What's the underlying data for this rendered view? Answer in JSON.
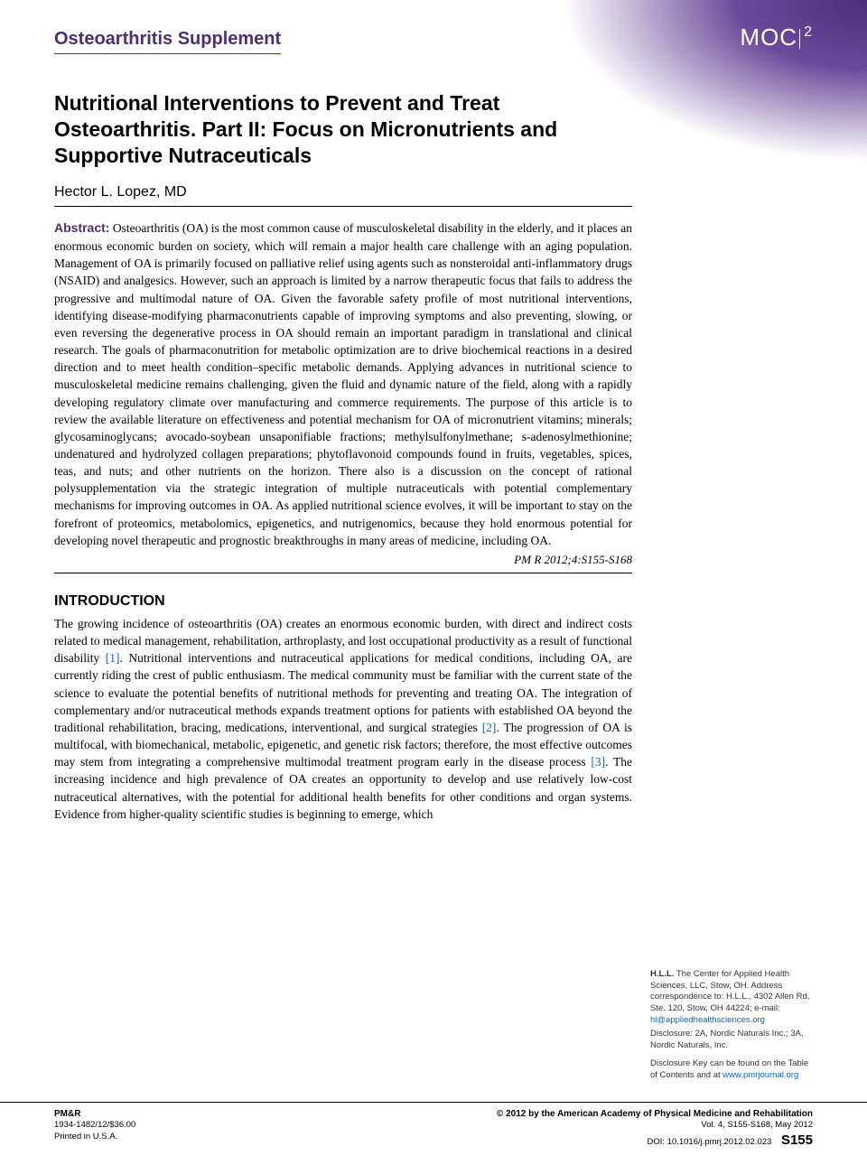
{
  "header": {
    "supplement_label": "Osteoarthritis Supplement",
    "badge_text": "MOC",
    "badge_exp": "2"
  },
  "article": {
    "title": "Nutritional Interventions to Prevent and Treat Osteoarthritis. Part II: Focus on Micronutrients and Supportive Nutraceuticals",
    "author": "Hector L. Lopez, MD"
  },
  "abstract": {
    "label": "Abstract:",
    "text": "Osteoarthritis (OA) is the most common cause of musculoskeletal disability in the elderly, and it places an enormous economic burden on society, which will remain a major health care challenge with an aging population. Management of OA is primarily focused on palliative relief using agents such as nonsteroidal anti-inflammatory drugs (NSAID) and analgesics. However, such an approach is limited by a narrow therapeutic focus that fails to address the progressive and multimodal nature of OA. Given the favorable safety profile of most nutritional interventions, identifying disease-modifying pharmaconutrients capable of improving symptoms and also preventing, slowing, or even reversing the degenerative process in OA should remain an important paradigm in translational and clinical research. The goals of pharmaconutrition for metabolic optimization are to drive biochemical reactions in a desired direction and to meet health condition–specific metabolic demands. Applying advances in nutritional science to musculoskeletal medicine remains challenging, given the fluid and dynamic nature of the field, along with a rapidly developing regulatory climate over manufacturing and commerce requirements. The purpose of this article is to review the available literature on effectiveness and potential mechanism for OA of micronutrient vitamins; minerals; glycosaminoglycans; avocado-soybean unsaponifiable fractions; methylsulfonylmethane; s-adenosylmethionine; undenatured and hydrolyzed collagen preparations; phytoflavonoid compounds found in fruits, vegetables, spices, teas, and nuts; and other nutrients on the horizon. There also is a discussion on the concept of rational polysupplementation via the strategic integration of multiple nutraceuticals with potential complementary mechanisms for improving outcomes in OA. As applied nutritional science evolves, it will be important to stay on the forefront of proteomics, metabolomics, epigenetics, and nutrigenomics, because they hold enormous potential for developing novel therapeutic and prognostic breakthroughs in many areas of medicine, including OA.",
    "citation": "PM R 2012;4:S155-S168"
  },
  "introduction": {
    "heading": "INTRODUCTION",
    "p1a": "The growing incidence of osteoarthritis (OA) creates an enormous economic burden, with direct and indirect costs related to medical management, rehabilitation, arthroplasty, and lost occupational productivity as a result of functional disability ",
    "ref1": "[1]",
    "p1b": ". Nutritional interventions and nutraceutical applications for medical conditions, including OA, are currently riding the crest of public enthusiasm. The medical community must be familiar with the current state of the science to evaluate the potential benefits of nutritional methods for preventing and treating OA. The integration of complementary and/or nutraceutical methods expands treatment options for patients with established OA beyond the traditional rehabilitation, bracing, medications, interventional, and surgical strategies ",
    "ref2": "[2]",
    "p1c": ". The progression of OA is multifocal, with biomechanical, metabolic, epigenetic, and genetic risk factors; therefore, the most effective outcomes may stem from integrating a comprehensive multimodal treatment program early in the disease process ",
    "ref3": "[3]",
    "p1d": ". The increasing incidence and high prevalence of OA creates an opportunity to develop and use relatively low-cost nutraceutical alternatives, with the potential for additional health benefits for other conditions and organ systems. Evidence from higher-quality scientific studies is beginning to emerge, which"
  },
  "sidebar": {
    "affiliation_label": "H.L.L.",
    "affiliation_text": " The Center for Applied Health Sciences, LLC, Stow, OH. Address correspondence to: H.L.L., 4302 Allen Rd, Ste. 120, Stow, OH 44224; e-mail: ",
    "email": "hl@appliedhealthsciences.org",
    "disclosure": "Disclosure: 2A, Nordic Naturals Inc.; 3A, Nordic Naturals, Inc.",
    "disclosure_key": "Disclosure Key can be found on the Table of Contents and at ",
    "disclosure_link": "www.pmrjournal.org"
  },
  "footer": {
    "journal": "PM&R",
    "issn_price": "1934-1482/12/$36.00",
    "printed": "Printed in U.S.A.",
    "copyright": "© 2012 by the American Academy of Physical Medicine and Rehabilitation",
    "vol_info": "Vol. 4, S155-S168, May 2012",
    "doi": "DOI: 10.1016/j.pmrj.2012.02.023",
    "page_num": "S155"
  },
  "colors": {
    "purple": "#4b2e7a",
    "link": "#0066cc",
    "text": "#000000"
  },
  "typography": {
    "title_fontsize": 23,
    "body_fontsize": 13.5,
    "sidebar_fontsize": 9.5,
    "footer_fontsize": 9.5
  }
}
